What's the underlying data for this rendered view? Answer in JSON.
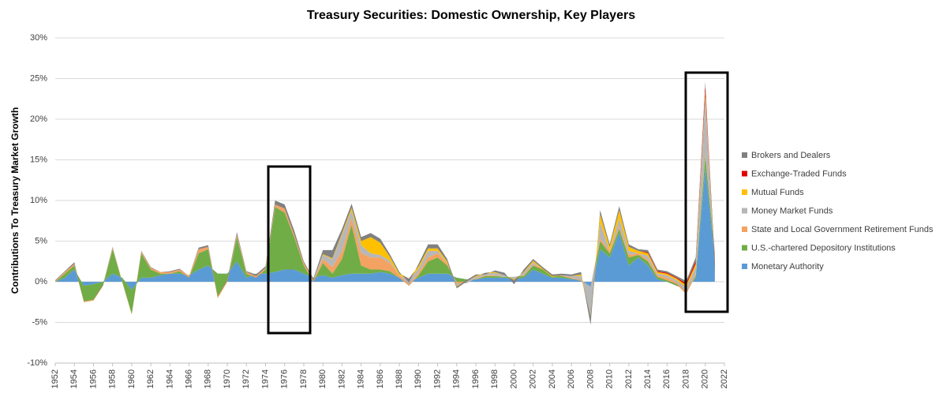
{
  "chart_data": {
    "type": "stacked_area",
    "title": "Treasury Securities: Domestic Ownership, Key Players",
    "y_label": "Contributions To Treasury Market Growth",
    "x": [
      1952,
      1953,
      1954,
      1955,
      1956,
      1957,
      1958,
      1959,
      1960,
      1961,
      1962,
      1963,
      1964,
      1965,
      1966,
      1967,
      1968,
      1969,
      1970,
      1971,
      1972,
      1973,
      1974,
      1975,
      1976,
      1977,
      1978,
      1979,
      1980,
      1981,
      1982,
      1983,
      1984,
      1985,
      1986,
      1987,
      1988,
      1989,
      1990,
      1991,
      1992,
      1993,
      1994,
      1995,
      1996,
      1997,
      1998,
      1999,
      2000,
      2001,
      2002,
      2003,
      2004,
      2005,
      2006,
      2007,
      2008,
      2009,
      2010,
      2011,
      2012,
      2013,
      2014,
      2015,
      2016,
      2017,
      2018,
      2019,
      2020,
      2021
    ],
    "xlim": [
      1952,
      2022
    ],
    "xticks": [
      1952,
      1954,
      1956,
      1958,
      1960,
      1962,
      1964,
      1966,
      1968,
      1970,
      1972,
      1974,
      1976,
      1978,
      1980,
      1982,
      1984,
      1986,
      1988,
      1990,
      1992,
      1994,
      1996,
      1998,
      2000,
      2002,
      2004,
      2006,
      2008,
      2010,
      2012,
      2014,
      2016,
      2018,
      2020,
      2022
    ],
    "ylim": [
      -10,
      30
    ],
    "yticks": [
      {
        "value": -10,
        "label": "-10%"
      },
      {
        "value": -5,
        "label": "-5%"
      },
      {
        "value": 0,
        "label": "0%"
      },
      {
        "value": 5,
        "label": "5%"
      },
      {
        "value": 10,
        "label": "10%"
      },
      {
        "value": 15,
        "label": "15%"
      },
      {
        "value": 20,
        "label": "20%"
      },
      {
        "value": 25,
        "label": "25%"
      },
      {
        "value": 30,
        "label": "30%"
      }
    ],
    "grid": true,
    "legend": "right",
    "series": [
      {
        "name": "Monetary Authority",
        "color": "#5b9bd5",
        "values": [
          0,
          0.5,
          1.5,
          -0.5,
          -0.3,
          0,
          1,
          0.5,
          -1,
          0.5,
          0.5,
          0.8,
          1,
          1,
          0.8,
          1.5,
          2,
          1,
          1,
          2.5,
          0.5,
          1,
          1,
          1.2,
          1.5,
          1.5,
          1,
          0.5,
          0.8,
          0.5,
          0.8,
          1,
          1,
          1,
          1.2,
          1,
          0.5,
          0,
          0.5,
          1,
          1,
          1,
          0.5,
          0.3,
          0.3,
          0.5,
          0.5,
          0.5,
          0.3,
          0.5,
          1.5,
          1,
          0.5,
          0.5,
          0.3,
          0.3,
          -1,
          4,
          3,
          6,
          2,
          3,
          2,
          0.3,
          0,
          -0.5,
          -1,
          0.5,
          14,
          3
        ]
      },
      {
        "name": "U.S.-chartered Depository Institutions",
        "color": "#70ad47",
        "values": [
          0,
          0.5,
          0.5,
          -2,
          -2,
          -0.5,
          3,
          -0.5,
          -3,
          3,
          1,
          0.2,
          0,
          0.3,
          -0.3,
          2,
          2,
          -3,
          -1,
          3,
          0.5,
          -0.5,
          0.5,
          8,
          7,
          4,
          1,
          -0.5,
          1.5,
          0.5,
          2,
          6,
          1,
          0.5,
          0.3,
          0.3,
          0,
          -0.5,
          0.3,
          1.5,
          2,
          1,
          -0.5,
          -0.3,
          0,
          0.2,
          0.2,
          0.1,
          0.3,
          0.2,
          0.5,
          0.5,
          0.3,
          0.2,
          0.1,
          -0.2,
          0.2,
          1,
          0.5,
          0.5,
          1,
          0.3,
          0.5,
          0.3,
          0.2,
          0.2,
          -0.5,
          0.3,
          1.5,
          0.5
        ]
      },
      {
        "name": "State and Local Government Retirement Funds",
        "color": "#f4a261",
        "values": [
          0.1,
          0.2,
          0.2,
          0.1,
          0.1,
          0.1,
          0.2,
          0.1,
          0.1,
          0.2,
          0.2,
          0.2,
          0.2,
          0.2,
          0.2,
          0.5,
          0.3,
          0.2,
          0.2,
          0.3,
          0.2,
          0.2,
          0.2,
          0.3,
          0.5,
          0.3,
          0.3,
          0.2,
          0.5,
          0.8,
          1,
          0.8,
          1.5,
          1.5,
          1.5,
          1,
          0.3,
          0.2,
          0.3,
          0.5,
          0.5,
          0.3,
          -0.2,
          -0.2,
          0.1,
          0.1,
          0.1,
          0,
          0,
          0.1,
          0.1,
          0.2,
          0.1,
          0.1,
          0.1,
          0.1,
          0.2,
          0.3,
          0.3,
          0.3,
          0.3,
          0.2,
          0.2,
          0.2,
          0.3,
          0.2,
          0.3,
          0.2,
          0.3,
          0.2
        ]
      },
      {
        "name": "Money Market Funds",
        "color": "#b7b7b7",
        "values": [
          0,
          0,
          0,
          0,
          0,
          0,
          0,
          0,
          0,
          0,
          0,
          0,
          0,
          0,
          0,
          0,
          0,
          0,
          0,
          0,
          0,
          0,
          0,
          0,
          0,
          0,
          0,
          0,
          0.5,
          1,
          2,
          1,
          1,
          0.5,
          0.3,
          0.3,
          0,
          0.5,
          0.5,
          0.8,
          0.3,
          0,
          -0.3,
          0.3,
          0.2,
          0.2,
          0.3,
          0.2,
          -0.3,
          0.3,
          0.3,
          -0.2,
          -0.3,
          0,
          0.2,
          0.5,
          -4,
          2,
          0,
          1,
          0.5,
          0,
          0.5,
          0.2,
          0.3,
          0.3,
          0.5,
          0.8,
          7,
          -2
        ]
      },
      {
        "name": "Mutual Funds",
        "color": "#ffc000",
        "values": [
          0,
          0,
          0,
          0,
          0,
          0,
          0,
          0,
          0,
          0,
          0,
          0,
          0,
          0,
          0,
          0,
          0,
          0,
          0,
          0,
          0,
          0,
          0,
          0,
          0,
          0,
          0,
          0,
          0.1,
          0.1,
          0.2,
          0.3,
          0.5,
          2,
          1.5,
          0.5,
          0.2,
          0.2,
          0.3,
          0.3,
          0.3,
          0.2,
          -0.3,
          -0.1,
          0.1,
          0.1,
          0.1,
          0,
          -0.1,
          0.1,
          0.2,
          0.1,
          0.1,
          0,
          0,
          0.2,
          0.3,
          1,
          0.5,
          1,
          0.5,
          0.3,
          0.3,
          0.2,
          0.2,
          0.2,
          0.3,
          0.4,
          0.5,
          0.3
        ]
      },
      {
        "name": "Exchange-Traded Funds",
        "color": "#e00000",
        "values": [
          0,
          0,
          0,
          0,
          0,
          0,
          0,
          0,
          0,
          0,
          0,
          0,
          0,
          0,
          0,
          0,
          0,
          0,
          0,
          0,
          0,
          0,
          0,
          0,
          0,
          0,
          0,
          0,
          0,
          0,
          0,
          0,
          0,
          0,
          0,
          0,
          0,
          0,
          0,
          0,
          0,
          0,
          0,
          0,
          0,
          0,
          0,
          0,
          0,
          0,
          0,
          0,
          0,
          0,
          0,
          0,
          0,
          0,
          0,
          0,
          0,
          0,
          0.1,
          0.1,
          0.1,
          0.1,
          0.2,
          0.3,
          0.8,
          0.2
        ]
      },
      {
        "name": "Brokers and Dealers",
        "color": "#808080",
        "values": [
          0.1,
          0.1,
          0.2,
          0,
          0,
          0.1,
          0.1,
          0,
          0,
          0.1,
          0.1,
          0,
          0.1,
          0.1,
          0,
          0.2,
          0.2,
          0,
          0.1,
          0.3,
          0.1,
          0.2,
          0.2,
          0.5,
          0.5,
          0.5,
          0.2,
          0.2,
          0.5,
          1,
          0.5,
          0.5,
          0.5,
          0.5,
          0.5,
          0.3,
          0.2,
          -0.5,
          0.3,
          0.5,
          0.5,
          0.3,
          0.2,
          0.2,
          0.2,
          -0.2,
          0.2,
          0.3,
          -0.5,
          0.3,
          0.2,
          0.2,
          0.2,
          0.2,
          0.2,
          0.3,
          -1,
          0.5,
          0.3,
          0.5,
          0.3,
          0.2,
          0.3,
          0.2,
          0.2,
          0.2,
          0.3,
          0.5,
          0.5,
          -1
        ]
      }
    ]
  }
}
